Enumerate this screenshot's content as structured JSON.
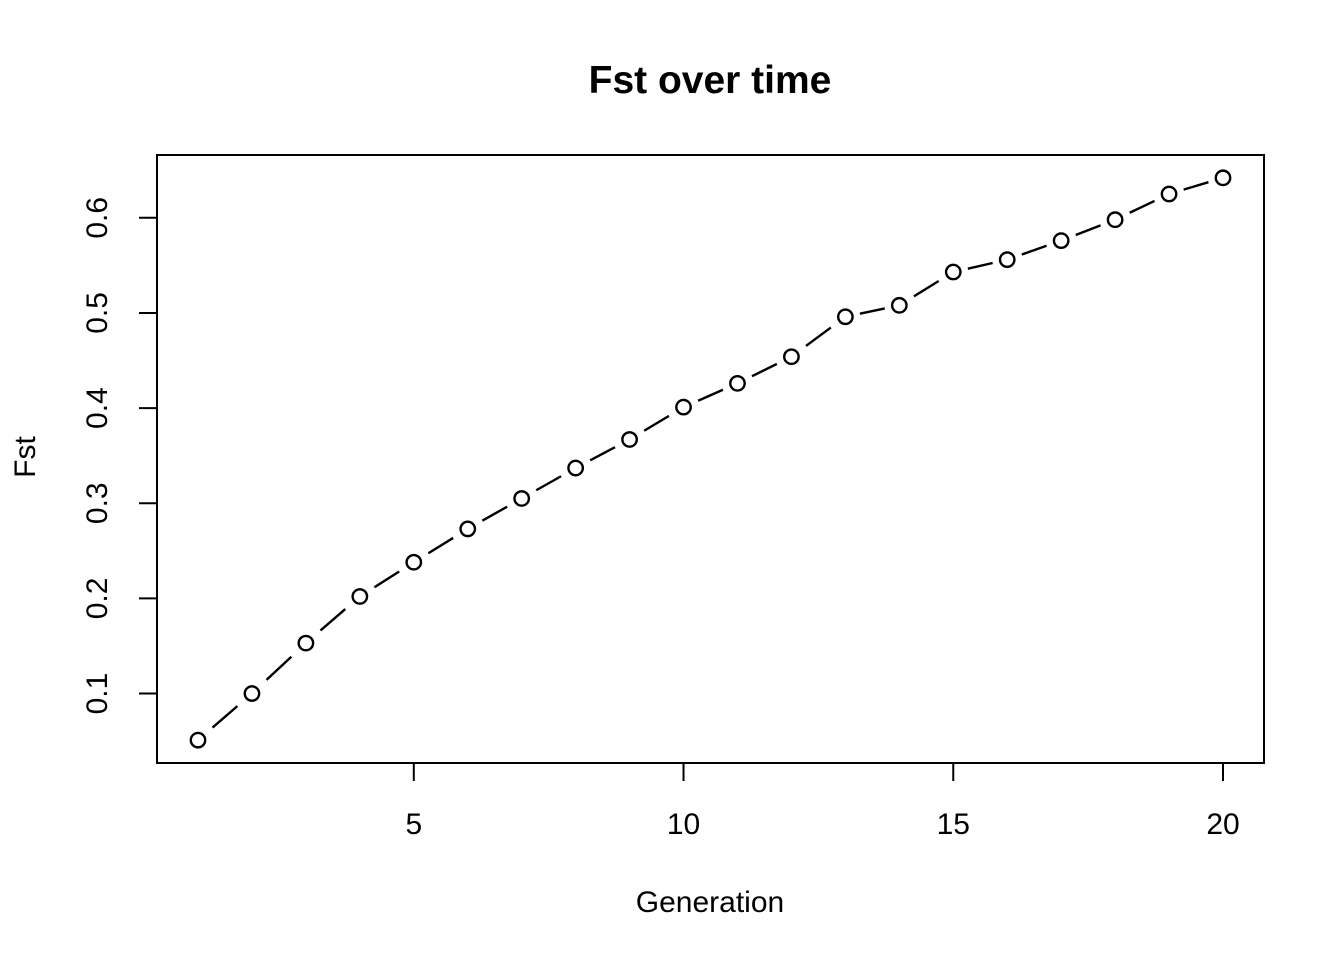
{
  "figure": {
    "background_color": "#ffffff",
    "foreground_color": "#000000"
  },
  "chart_data": {
    "type": "line",
    "title": "Fst over time",
    "xlabel": "Generation",
    "ylabel": "Fst",
    "x": [
      1,
      2,
      3,
      4,
      5,
      6,
      7,
      8,
      9,
      10,
      11,
      12,
      13,
      14,
      15,
      16,
      17,
      18,
      19,
      20
    ],
    "y": [
      0.051,
      0.1,
      0.153,
      0.202,
      0.238,
      0.273,
      0.305,
      0.337,
      0.367,
      0.401,
      0.426,
      0.454,
      0.496,
      0.508,
      0.543,
      0.556,
      0.576,
      0.598,
      0.625,
      0.642
    ],
    "xticks": [
      5,
      10,
      15,
      20
    ],
    "xtick_labels": [
      "5",
      "10",
      "15",
      "20"
    ],
    "yticks": [
      0.1,
      0.2,
      0.3,
      0.4,
      0.5,
      0.6
    ],
    "ytick_labels": [
      "0.1",
      "0.2",
      "0.3",
      "0.4",
      "0.5",
      "0.6"
    ],
    "xlim": [
      0.24,
      20.76
    ],
    "ylim": [
      0.027,
      0.666
    ],
    "grid": false,
    "legend": "none",
    "marker": "open-circle",
    "line_style": "dashed",
    "line_color": "#000000",
    "marker_color": "#000000",
    "marker_fill": "#ffffff"
  }
}
